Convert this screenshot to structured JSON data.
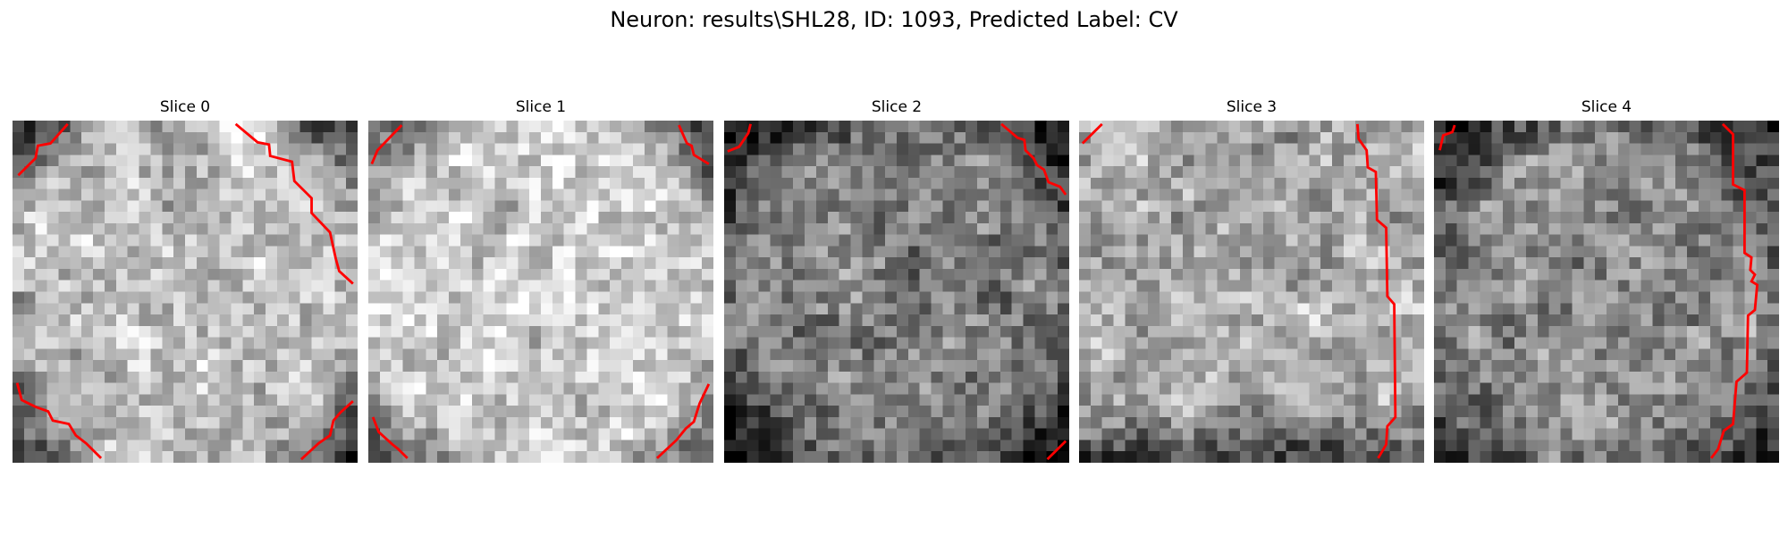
{
  "figure": {
    "suptitle": "Neuron: results\\SHL28, ID: 1093, Predicted Label: CV",
    "colormap": "gray",
    "contour_color": "#ff0000"
  },
  "slices": [
    {
      "title": "Slice 0",
      "mean_level": 0.74,
      "border_darkness": "corners"
    },
    {
      "title": "Slice 1",
      "mean_level": 0.8,
      "border_darkness": "corners"
    },
    {
      "title": "Slice 2",
      "mean_level": 0.5,
      "border_darkness": "edges"
    },
    {
      "title": "Slice 3",
      "mean_level": 0.66,
      "border_darkness": "bottom"
    },
    {
      "title": "Slice 4",
      "mean_level": 0.55,
      "border_darkness": "edges"
    }
  ]
}
